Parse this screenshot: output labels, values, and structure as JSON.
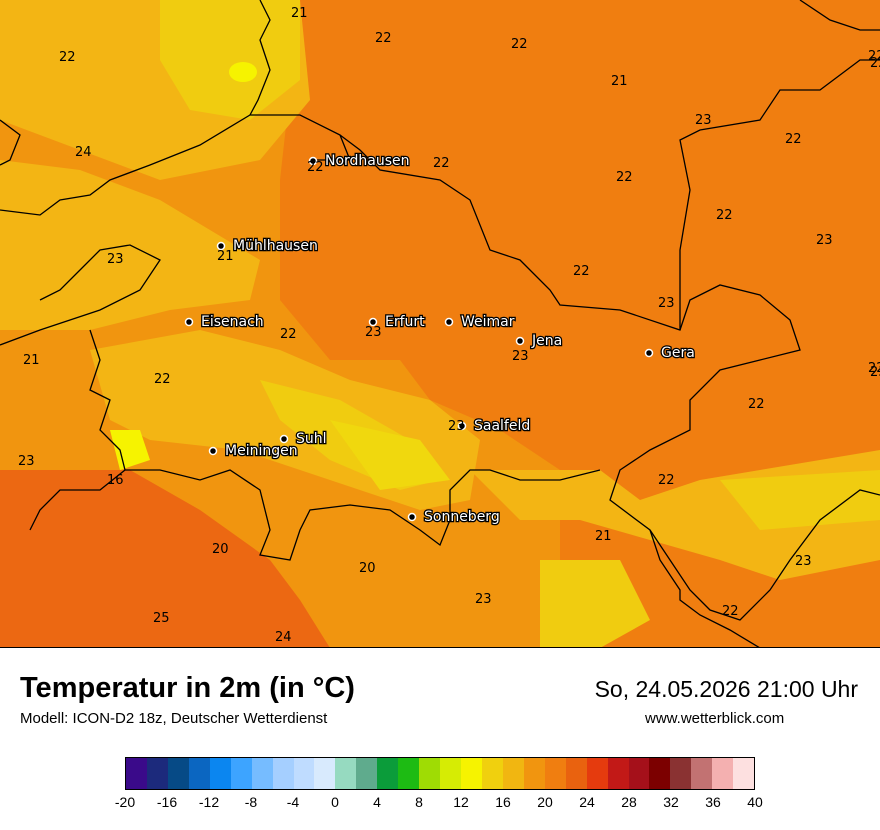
{
  "map": {
    "cities": [
      {
        "name": "Nordhausen",
        "value": "22"
      },
      {
        "name": "Mühlhausen",
        "value": "21"
      },
      {
        "name": "Eisenach",
        "value": ""
      },
      {
        "name": "Erfurt",
        "value": "23"
      },
      {
        "name": "Weimar",
        "value": ""
      },
      {
        "name": "Jena",
        "value": "23"
      },
      {
        "name": "Gera",
        "value": ""
      },
      {
        "name": "Suhl",
        "value": ""
      },
      {
        "name": "Meiningen",
        "value": ""
      },
      {
        "name": "Saalfeld",
        "value": "23"
      },
      {
        "name": "Sonneberg",
        "value": ""
      }
    ],
    "values": [
      "21",
      "22",
      "22",
      "22",
      "22",
      "21",
      "23",
      "22",
      "24",
      "22",
      "22",
      "23",
      "22",
      "23",
      "22",
      "22",
      "23",
      "21",
      "22",
      "23",
      "22",
      "22",
      "23",
      "16",
      "20",
      "20",
      "23",
      "21",
      "22",
      "23",
      "25",
      "24",
      "22",
      "22"
    ],
    "palette": {
      "t16": "#f0cc10",
      "t18": "#f3b514",
      "t20": "#f1950f",
      "t22": "#f07e10",
      "t24": "#ec6812",
      "t14": "#f4e60a",
      "t26": "#e9420f",
      "border": "#000000"
    }
  },
  "footer": {
    "title": "Temperatur in 2m (in °C)",
    "subtitle": "Modell: ICON-D2 18z, Deutscher Wetterdienst",
    "datetime": "So, 24.05.2026 21:00 Uhr",
    "website": "www.wetterblick.com"
  },
  "legend": {
    "colors": [
      "#3a0a8a",
      "#1c2a7c",
      "#064a86",
      "#0b66c1",
      "#0b86f0",
      "#3da4ff",
      "#76bcff",
      "#a5cfff",
      "#bfdcff",
      "#d8eafd",
      "#96dac0",
      "#5fab8d",
      "#0b9c3a",
      "#1dbb13",
      "#9fdc04",
      "#d6ec04",
      "#f6f300",
      "#f0d00e",
      "#f1b611",
      "#f1950f",
      "#f07e10",
      "#e9620f",
      "#e53b0e",
      "#c21917",
      "#a5101a",
      "#7c0000",
      "#8a3232",
      "#c27272",
      "#f4b0b0",
      "#fde0e0"
    ],
    "ticks": [
      "-20",
      "-16",
      "-12",
      "-8",
      "-4",
      "0",
      "4",
      "8",
      "12",
      "16",
      "20",
      "24",
      "28",
      "32",
      "36",
      "40"
    ]
  }
}
